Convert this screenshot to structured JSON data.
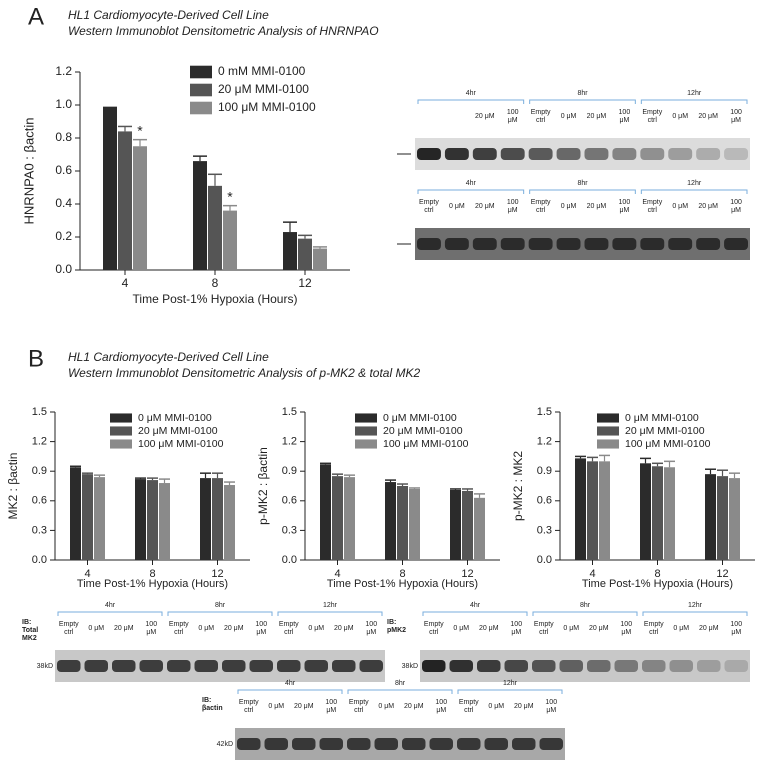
{
  "panels": [
    {
      "label": "A",
      "title": "HL1 Cardiomyocyte-Derived Cell Line",
      "subtitle": "Western Immunoblot Densitometric Analysis of HNRNPAO"
    },
    {
      "label": "B",
      "title": "HL1 Cardiomyocyte-Derived Cell Line",
      "subtitle": "Western Immunoblot Densitometric Analysis of p-MK2 & total MK2"
    }
  ],
  "chart_data": [
    {
      "type": "bar",
      "ylabel": "HNRNPA0 : βactin",
      "xlabel": "Time Post-1% Hypoxia (Hours)",
      "categories": [
        "4",
        "8",
        "12"
      ],
      "series": [
        {
          "name": "0 mM MMI-0100",
          "color": "#2b2b2b",
          "values": [
            0.99,
            0.66,
            0.23
          ],
          "errors": [
            0,
            0.03,
            0.06
          ]
        },
        {
          "name": "20 μM MMI-0100",
          "color": "#555555",
          "values": [
            0.84,
            0.51,
            0.19
          ],
          "errors": [
            0.03,
            0.07,
            0.02
          ]
        },
        {
          "name": "100 μM  MMI-0100",
          "color": "#8a8a8a",
          "values": [
            0.75,
            0.36,
            0.13
          ],
          "errors": [
            0.04,
            0.03,
            0.01
          ]
        }
      ],
      "annotations": [
        {
          "text": "*",
          "category": "4",
          "series": "100 μM  MMI-0100"
        },
        {
          "text": "*",
          "category": "8",
          "series": "100 μM  MMI-0100"
        }
      ],
      "ylim": [
        0,
        1.2
      ],
      "yticks": [
        {
          "value": 0,
          "label": "0.0"
        },
        0.2,
        0.4,
        0.6,
        0.8,
        {
          "value": 1,
          "label": "1.0"
        },
        1.2
      ]
    },
    {
      "type": "bar",
      "ylabel": "MK2 : βactin",
      "xlabel": "Time Post-1% Hypoxia (Hours)",
      "categories": [
        "4",
        "8",
        "12"
      ],
      "series": [
        {
          "name": "0 μM MMI-0100",
          "color": "#2b2b2b",
          "values": [
            0.94,
            0.82,
            0.83
          ],
          "errors": [
            0.01,
            0.01,
            0.05
          ]
        },
        {
          "name": "20 μM MMI-0100",
          "color": "#555555",
          "values": [
            0.87,
            0.81,
            0.83
          ],
          "errors": [
            0.01,
            0.02,
            0.05
          ]
        },
        {
          "name": "100 μM MMI-0100",
          "color": "#8a8a8a",
          "values": [
            0.84,
            0.78,
            0.76
          ],
          "errors": [
            0.02,
            0.04,
            0.03
          ]
        }
      ],
      "ylim": [
        0,
        1.5
      ],
      "yticks": [
        {
          "value": 0,
          "label": "0.0"
        },
        0.3,
        0.6,
        0.9,
        1.2,
        1.5
      ]
    },
    {
      "type": "bar",
      "ylabel": "p-MK2 : βactin",
      "xlabel": "Time Post-1% Hypoxia (Hours)",
      "categories": [
        "4",
        "8",
        "12"
      ],
      "series": [
        {
          "name": "0 μM MMI-0100",
          "color": "#2b2b2b",
          "values": [
            0.97,
            0.79,
            0.71
          ],
          "errors": [
            0.01,
            0.02,
            0.01
          ]
        },
        {
          "name": "20 μM MMI-0100",
          "color": "#555555",
          "values": [
            0.85,
            0.75,
            0.7
          ],
          "errors": [
            0.02,
            0.02,
            0.02
          ]
        },
        {
          "name": "100 μM MMI-0100",
          "color": "#8a8a8a",
          "values": [
            0.84,
            0.72,
            0.63
          ],
          "errors": [
            0.02,
            0.01,
            0.04
          ]
        }
      ],
      "ylim": [
        0,
        1.5
      ],
      "yticks": [
        {
          "value": 0,
          "label": "0.0"
        },
        0.3,
        0.6,
        0.9,
        1.2,
        1.5
      ]
    },
    {
      "type": "bar",
      "ylabel": "p-MK2 : MK2",
      "xlabel": "Time Post-1% Hypoxia (Hours)",
      "categories": [
        "4",
        "8",
        "12"
      ],
      "series": [
        {
          "name": "0 μM MMI-0100",
          "color": "#2b2b2b",
          "values": [
            1.03,
            0.98,
            0.87
          ],
          "errors": [
            0.02,
            0.05,
            0.05
          ]
        },
        {
          "name": "20 μM MMI-0100",
          "color": "#555555",
          "values": [
            1.0,
            0.95,
            0.85
          ],
          "errors": [
            0.04,
            0.03,
            0.06
          ]
        },
        {
          "name": "100 μM MMI-0100",
          "color": "#8a8a8a",
          "values": [
            1.0,
            0.94,
            0.83
          ],
          "errors": [
            0.06,
            0.06,
            0.05
          ]
        }
      ],
      "ylim": [
        0,
        1.5
      ],
      "yticks": [
        {
          "value": 0,
          "label": "0.0"
        },
        0.3,
        0.6,
        0.9,
        1.2,
        1.5
      ]
    }
  ],
  "blots": [
    {
      "groups": [
        {
          "time": "4hr",
          "lanes": [
            [
              "20 μM"
            ],
            [
              "100",
              "μM"
            ]
          ]
        },
        {
          "time": "8hr",
          "lanes": [
            [
              "Empty",
              "ctrl"
            ],
            [
              "0 μM"
            ],
            [
              "20 μM"
            ],
            [
              "100",
              "μM"
            ]
          ]
        },
        {
          "time": "12hr",
          "lanes": [
            [
              "Empty",
              "ctrl"
            ],
            [
              "0 μM"
            ],
            [
              "20 μM"
            ],
            [
              "100",
              "μM"
            ]
          ]
        }
      ]
    },
    {
      "groups": [
        {
          "time": "4hr",
          "lanes": [
            [
              "Empty",
              "ctrl"
            ],
            [
              "0 μM"
            ],
            [
              "20 μM"
            ],
            [
              "100",
              "μM"
            ]
          ]
        },
        {
          "time": "8hr",
          "lanes": [
            [
              "Empty",
              "ctrl"
            ],
            [
              "0 μM"
            ],
            [
              "20 μM"
            ],
            [
              "100",
              "μM"
            ]
          ]
        },
        {
          "time": "12hr",
          "lanes": [
            [
              "Empty",
              "ctrl"
            ],
            [
              "0 μM"
            ],
            [
              "20 μM"
            ],
            [
              "100",
              "μM"
            ]
          ]
        }
      ]
    },
    {
      "ib": [
        "IB:",
        "Total",
        "MK2"
      ],
      "marker": "38kD",
      "groups": [
        {
          "time": "4hr",
          "lanes": [
            [
              "Empty",
              "ctrl"
            ],
            [
              "0 μM"
            ],
            [
              "20 μM"
            ],
            [
              "100",
              "μM"
            ]
          ]
        },
        {
          "time": "8hr",
          "lanes": [
            [
              "Empty",
              "ctrl"
            ],
            [
              "0 μM"
            ],
            [
              "20 μM"
            ],
            [
              "100",
              "μM"
            ]
          ]
        },
        {
          "time": "12hr",
          "lanes": [
            [
              "Empty",
              "ctrl"
            ],
            [
              "0 μM"
            ],
            [
              "20 μM"
            ],
            [
              "100",
              "μM"
            ]
          ]
        }
      ]
    },
    {
      "ib": [
        "IB:",
        "pMK2"
      ],
      "marker": "38kD",
      "groups": [
        {
          "time": "4hr",
          "lanes": [
            [
              "Empty",
              "ctrl"
            ],
            [
              "0 μM"
            ],
            [
              "20 μM"
            ],
            [
              "100",
              "μM"
            ]
          ]
        },
        {
          "time": "8hr",
          "lanes": [
            [
              "Empty",
              "ctrl"
            ],
            [
              "0 μM"
            ],
            [
              "20 μM"
            ],
            [
              "100",
              "μM"
            ]
          ]
        },
        {
          "time": "12hr",
          "lanes": [
            [
              "Empty",
              "ctrl"
            ],
            [
              "0 μM"
            ],
            [
              "20 μM"
            ],
            [
              "100",
              "μM"
            ]
          ]
        }
      ]
    },
    {
      "ib": [
        "IB:",
        "βactin"
      ],
      "marker": "42kD",
      "groups": [
        {
          "time": "4hr",
          "lanes": [
            [
              "Empty",
              "ctrl"
            ],
            [
              "0 μM"
            ],
            [
              "20 μM"
            ],
            [
              "100",
              "μM"
            ]
          ]
        },
        {
          "time": "8hr",
          "lanes": [
            [
              "Empty",
              "ctrl"
            ],
            [
              "0 μM"
            ],
            [
              "20 μM"
            ],
            [
              "100",
              "μM"
            ]
          ]
        },
        {
          "time": "12hr",
          "lanes": [
            [
              "Empty",
              "ctrl"
            ],
            [
              "0 μM"
            ],
            [
              "20 μM"
            ],
            [
              "100",
              "μM"
            ]
          ]
        }
      ]
    }
  ]
}
